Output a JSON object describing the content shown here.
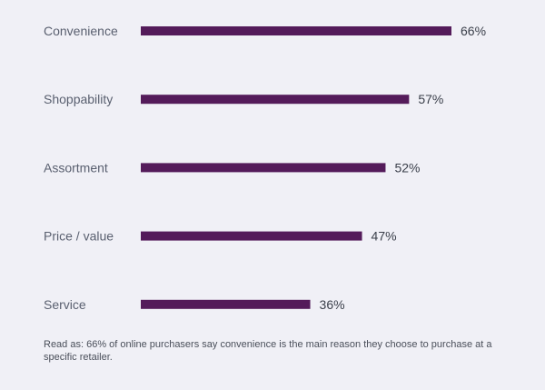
{
  "chart_data": {
    "type": "bar",
    "orientation": "horizontal",
    "categories": [
      "Convenience",
      "Shoppability",
      "Assortment",
      "Price / value",
      "Service"
    ],
    "values": [
      66,
      57,
      52,
      47,
      36
    ],
    "value_labels": [
      "66%",
      "57%",
      "52%",
      "47%",
      "36%"
    ],
    "unit": "%",
    "xlim": [
      0,
      100
    ],
    "grid": false,
    "bar_color": "#541b5a",
    "title": "",
    "xlabel": "",
    "ylabel": ""
  },
  "footnote": "Read as: 66% of online purchasers say convenience is the main reason they choose to purchase at a specific retailer."
}
